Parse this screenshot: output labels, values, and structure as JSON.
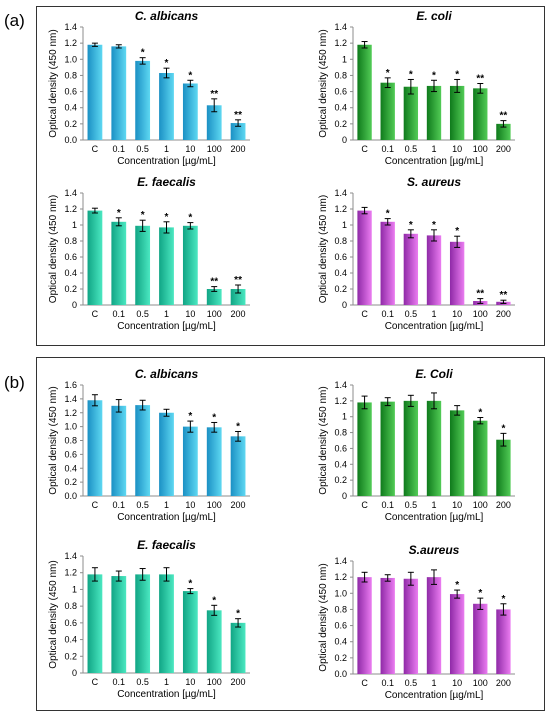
{
  "panels": [
    {
      "letter": "(a)"
    },
    {
      "letter": "(b)"
    }
  ],
  "colors": {
    "cyan": [
      "#1b90c4",
      "#5ed8f2"
    ],
    "green": [
      "#0f7a1c",
      "#52cc56"
    ],
    "teal": [
      "#11a585",
      "#4be8c1"
    ],
    "magenta": [
      "#8f2aa7",
      "#eb7cf1"
    ]
  },
  "chart_data": [
    {
      "panel": "(a)",
      "type": "bar",
      "title": "C. albicans",
      "color": "cyan",
      "categories": [
        "C",
        "0.1",
        "0.5",
        "1",
        "10",
        "100",
        "200"
      ],
      "values": [
        1.18,
        1.16,
        0.98,
        0.83,
        0.7,
        0.43,
        0.21
      ],
      "errors": [
        0.02,
        0.02,
        0.04,
        0.06,
        0.04,
        0.08,
        0.04
      ],
      "significance": [
        "",
        "",
        "*",
        "*",
        "*",
        "**",
        "**"
      ],
      "ylim": [
        0,
        1.4
      ],
      "yticks": [
        "0.0",
        "0.2",
        "0.4",
        "0.6",
        "0.8",
        "1.0",
        "1.2",
        "1.4"
      ],
      "xlabel": "Concentration [µg/mL]",
      "ylabel": "Optical density (450 nm)"
    },
    {
      "panel": "(a)",
      "type": "bar",
      "title": "E. coli",
      "color": "green",
      "categories": [
        "C",
        "0.1",
        "0.5",
        "1",
        "10",
        "100",
        "200"
      ],
      "values": [
        1.18,
        0.71,
        0.66,
        0.67,
        0.67,
        0.64,
        0.2
      ],
      "errors": [
        0.04,
        0.06,
        0.09,
        0.07,
        0.08,
        0.06,
        0.04
      ],
      "significance": [
        "",
        "*",
        "*",
        "*",
        "*",
        "**",
        "**"
      ],
      "ylim": [
        0,
        1.4
      ],
      "yticks": [
        "0",
        "0.2",
        "0.4",
        "0.6",
        "0.8",
        "1",
        "1.2",
        "1.4"
      ],
      "xlabel": "Concentration [µg/mL]",
      "ylabel": "Optical density (450 nm)"
    },
    {
      "panel": "(a)",
      "type": "bar",
      "title": "E. faecalis",
      "color": "teal",
      "categories": [
        "C",
        "0.1",
        "0.5",
        "1",
        "10",
        "100",
        "200"
      ],
      "values": [
        1.18,
        1.04,
        0.99,
        0.97,
        0.99,
        0.2,
        0.2
      ],
      "errors": [
        0.03,
        0.05,
        0.07,
        0.07,
        0.04,
        0.03,
        0.05
      ],
      "significance": [
        "",
        "*",
        "*",
        "*",
        "*",
        "**",
        "**"
      ],
      "ylim": [
        0,
        1.4
      ],
      "yticks": [
        "0",
        "0.2",
        "0.4",
        "0.6",
        "0.8",
        "1",
        "1.2",
        "1.4"
      ],
      "xlabel": "Concentration [µg/mL]",
      "ylabel": "Optical density (450 nm)"
    },
    {
      "panel": "(a)",
      "type": "bar",
      "title": "S. aureus",
      "color": "magenta",
      "categories": [
        "C",
        "0.1",
        "0.5",
        "1",
        "10",
        "100",
        "200"
      ],
      "values": [
        1.18,
        1.04,
        0.89,
        0.87,
        0.79,
        0.05,
        0.04
      ],
      "errors": [
        0.04,
        0.04,
        0.05,
        0.07,
        0.07,
        0.03,
        0.02
      ],
      "significance": [
        "",
        "*",
        "*",
        "*",
        "*",
        "**",
        "**"
      ],
      "ylim": [
        0,
        1.4
      ],
      "yticks": [
        "0",
        "0.2",
        "0.4",
        "0.6",
        "0.8",
        "1",
        "1.2",
        "1.4"
      ],
      "xlabel": "Concentration [µg/mL]",
      "ylabel": "Optical density (450 nm)"
    },
    {
      "panel": "(b)",
      "type": "bar",
      "title": "C. albicans",
      "color": "cyan",
      "categories": [
        "C",
        "0.1",
        "0.5",
        "1",
        "10",
        "100",
        "200"
      ],
      "values": [
        1.38,
        1.3,
        1.31,
        1.2,
        1.0,
        0.99,
        0.86
      ],
      "errors": [
        0.08,
        0.09,
        0.07,
        0.05,
        0.08,
        0.07,
        0.07
      ],
      "significance": [
        "",
        "",
        "",
        "",
        "*",
        "*",
        "*"
      ],
      "ylim": [
        0,
        1.6
      ],
      "yticks": [
        "0.0",
        "0.2",
        "0.4",
        "0.6",
        "0.8",
        "1.0",
        "1.2",
        "1.4",
        "1.6"
      ],
      "xlabel": "Concentration [µg/mL]",
      "ylabel": "Optical density (450 nm)"
    },
    {
      "panel": "(b)",
      "type": "bar",
      "title": "E. Coli",
      "color": "green",
      "categories": [
        "C",
        "0.1",
        "0.5",
        "1",
        "10",
        "100",
        "200"
      ],
      "values": [
        1.18,
        1.19,
        1.2,
        1.2,
        1.08,
        0.95,
        0.71
      ],
      "errors": [
        0.08,
        0.05,
        0.07,
        0.1,
        0.06,
        0.04,
        0.08
      ],
      "significance": [
        "",
        "",
        "",
        "",
        "",
        "*",
        "*"
      ],
      "ylim": [
        0,
        1.4
      ],
      "yticks": [
        "0",
        "0.2",
        "0.4",
        "0.6",
        "0.8",
        "1",
        "1.2",
        "1.4"
      ],
      "xlabel": "Concentration [µg/mL]",
      "ylabel": "Optical density (450 nm)"
    },
    {
      "panel": "(b)",
      "type": "bar",
      "title": "E. faecalis",
      "color": "teal",
      "categories": [
        "C",
        "0.1",
        "0.5",
        "1",
        "10",
        "100",
        "200"
      ],
      "values": [
        1.18,
        1.16,
        1.18,
        1.18,
        0.98,
        0.75,
        0.6
      ],
      "errors": [
        0.08,
        0.06,
        0.07,
        0.08,
        0.03,
        0.06,
        0.05
      ],
      "significance": [
        "",
        "",
        "",
        "",
        "*",
        "*",
        "*"
      ],
      "ylim": [
        0,
        1.4
      ],
      "yticks": [
        "0",
        "0.2",
        "0.4",
        "0.6",
        "0.8",
        "1",
        "1.2",
        "1.4"
      ],
      "xlabel": "Concentration [µg/mL]",
      "ylabel": "Optical density (450 nm)"
    },
    {
      "panel": "(b)",
      "type": "bar",
      "title": "S.aureus",
      "color": "magenta",
      "categories": [
        "C",
        "0.1",
        "0.5",
        "1",
        "10",
        "100",
        "200"
      ],
      "values": [
        1.2,
        1.19,
        1.18,
        1.2,
        0.99,
        0.87,
        0.8
      ],
      "errors": [
        0.06,
        0.04,
        0.08,
        0.09,
        0.05,
        0.07,
        0.07
      ],
      "significance": [
        "",
        "",
        "",
        "",
        "*",
        "*",
        "*"
      ],
      "ylim": [
        0,
        1.4
      ],
      "yticks": [
        "0.0",
        "0.2",
        "0.4",
        "0.6",
        "0.8",
        "1.0",
        "1.2",
        "1.4"
      ],
      "xlabel": "Concentration [µg/mL]",
      "ylabel": "Optical density (450 nm)"
    }
  ]
}
